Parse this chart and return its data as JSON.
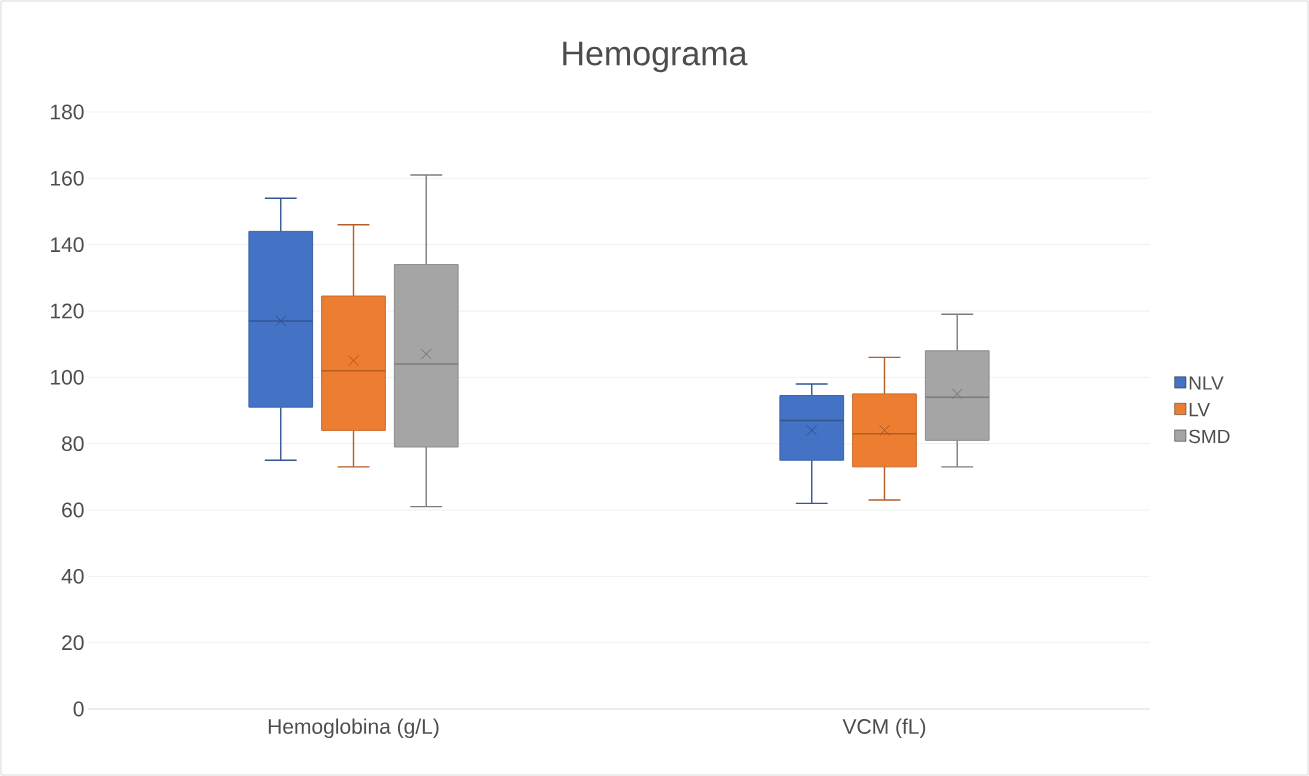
{
  "chart_data": {
    "type": "box",
    "title": "Hemograma",
    "categories": [
      "Hemoglobina (g/L)",
      "VCM (fL)"
    ],
    "series": [
      {
        "name": "NLV",
        "color": "#4472c4",
        "boxes": [
          {
            "low": 75,
            "q1": 91,
            "median": 117,
            "q3": 144,
            "high": 154,
            "mean": 117
          },
          {
            "low": 62,
            "q1": 75,
            "median": 87,
            "q3": 94.5,
            "high": 98,
            "mean": 84
          }
        ]
      },
      {
        "name": "LV",
        "color": "#ed7d31",
        "boxes": [
          {
            "low": 73,
            "q1": 84,
            "median": 102,
            "q3": 124.5,
            "high": 146,
            "mean": 105
          },
          {
            "low": 63,
            "q1": 73,
            "median": 83,
            "q3": 95,
            "high": 106,
            "mean": 84
          }
        ]
      },
      {
        "name": "SMD",
        "color": "#a5a5a5",
        "boxes": [
          {
            "low": 61,
            "q1": 79,
            "median": 104,
            "q3": 134,
            "high": 161,
            "mean": 107
          },
          {
            "low": 73,
            "q1": 81,
            "median": 94,
            "q3": 108,
            "high": 119,
            "mean": 95
          }
        ]
      }
    ],
    "ylim": [
      0,
      180
    ],
    "yticks": [
      0,
      20,
      40,
      60,
      80,
      100,
      120,
      140,
      160,
      180
    ],
    "grid": "y",
    "legend": "right"
  }
}
